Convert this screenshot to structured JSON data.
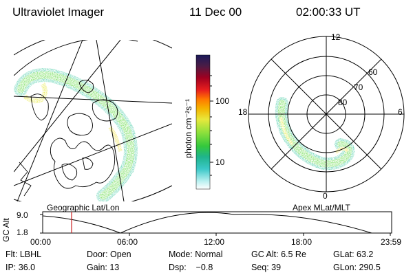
{
  "header": {
    "title": "Ultraviolet Imager",
    "date": "11 Dec 00",
    "time": "02:00:33 UT"
  },
  "colorbar": {
    "unit_label": "photon cm⁻²s⁻¹",
    "ticks": [
      "100",
      "10"
    ],
    "scale": "log",
    "colors": [
      "#ffffff",
      "#b8f0f0",
      "#3cc8c8",
      "#1fb48c",
      "#34c83c",
      "#8ce03c",
      "#e8e83c",
      "#f4b400",
      "#ff7800",
      "#e81e1e",
      "#a00020",
      "#4a1c46",
      "#1a1a5a"
    ]
  },
  "geo_panel": {
    "label": "Geographic Lat/Lon"
  },
  "polar_panel": {
    "label": "Apex MLat/MLT",
    "mlt_labels": {
      "top": "12",
      "left": "18",
      "right": "6",
      "bottom": "0"
    },
    "lat_labels": [
      "60",
      "70",
      "80"
    ]
  },
  "altitude_plot": {
    "ylabel": "GC Alt",
    "yticks": [
      "9.0",
      "1.8"
    ],
    "xticks": [
      "00:00",
      "06:00",
      "12:00",
      "18:00",
      "23:59"
    ],
    "marker_time": "02:00",
    "marker_color": "#cc2222"
  },
  "info": {
    "flt": "Flt: LBHL",
    "door": "Door: Open",
    "mode": "Mode: Normal",
    "gc_alt": "GC Alt: 6.5 Re",
    "glat": "GLat:  63.2",
    "ip": "IP: 36.0",
    "gain": "Gain: 13",
    "dsp": "Dsp:    −0.8",
    "seq": "Seq: 39",
    "glon": "GLon: 290.5"
  }
}
